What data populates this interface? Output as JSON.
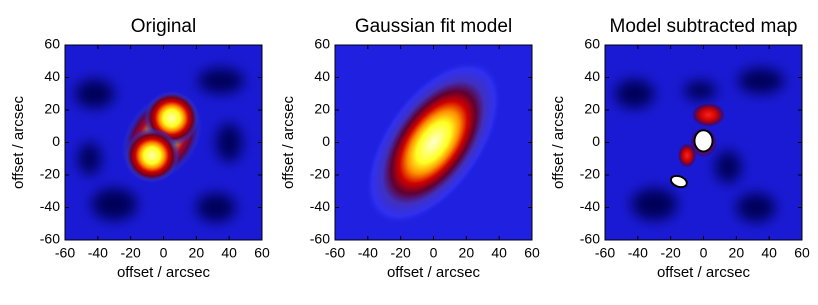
{
  "chart_data": [
    {
      "type": "image",
      "title": "Original",
      "xlabel": "offset / arcsec",
      "ylabel": "offset / arcsec",
      "xlim": [
        -60,
        60
      ],
      "ylim": [
        -60,
        60
      ],
      "xticks": [
        -60,
        -40,
        -20,
        0,
        20,
        40,
        60
      ],
      "yticks": [
        -60,
        -40,
        -20,
        0,
        20,
        40,
        60
      ]
    },
    {
      "type": "image",
      "title": "Gaussian fit model",
      "xlabel": "offset / arcsec",
      "ylabel": "offset / arcsec",
      "xlim": [
        -60,
        60
      ],
      "ylim": [
        -60,
        60
      ],
      "xticks": [
        -60,
        -40,
        -20,
        0,
        20,
        40,
        60
      ],
      "yticks": [
        -60,
        -40,
        -20,
        0,
        20,
        40,
        60
      ]
    },
    {
      "type": "image",
      "title": "Model subtracted map",
      "xlabel": "offset / arcsec",
      "ylabel": "offset / arcsec",
      "xlim": [
        -60,
        60
      ],
      "ylim": [
        -60,
        60
      ],
      "xticks": [
        -60,
        -40,
        -20,
        0,
        20,
        40,
        60
      ],
      "yticks": [
        -60,
        -40,
        -20,
        0,
        20,
        40,
        60
      ]
    }
  ]
}
